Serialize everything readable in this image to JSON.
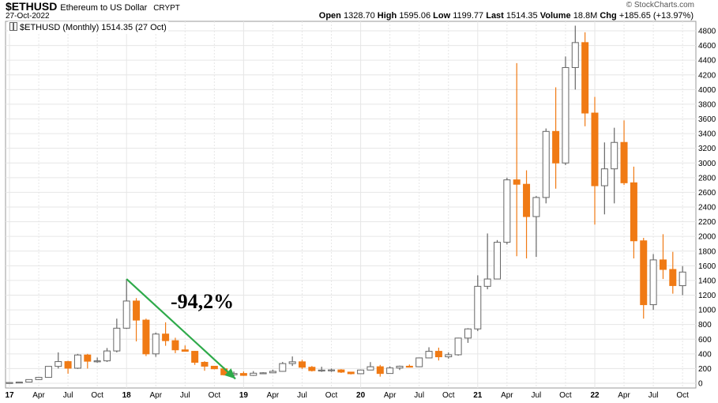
{
  "header": {
    "symbol": "$ETHUSD",
    "description": "Ethereum to US Dollar",
    "exchange": "CRYPT",
    "date": "27-Oct-2022",
    "copyright": "© StockCharts.com"
  },
  "quote": {
    "open_label": "Open",
    "open": "1328.70",
    "high_label": "High",
    "high": "1595.06",
    "low_label": "Low",
    "low": "1199.77",
    "last_label": "Last",
    "last": "1514.35",
    "volume_label": "Volume",
    "volume": "18.8M",
    "chg_label": "Chg",
    "chg": "+185.65 (+13.97%)"
  },
  "legend": {
    "label": "$ETHUSD (Monthly) 1514.35 (27 Oct)"
  },
  "annotation": {
    "text": "-94,2%",
    "arrow_color": "#2eaa4a"
  },
  "colors": {
    "up": "#ffffff",
    "down": "#f07a14",
    "up_border": "#666666",
    "wick": "#666666",
    "grid": "#e6e6e6"
  },
  "chart_data": {
    "type": "candlestick",
    "interval": "monthly",
    "y_axis_side": "right",
    "ylim": [
      0,
      4900
    ],
    "y_ticks": [
      0,
      200,
      400,
      600,
      800,
      1000,
      1200,
      1400,
      1600,
      1800,
      2000,
      2200,
      2400,
      2600,
      2800,
      3000,
      3200,
      3400,
      3600,
      3800,
      4000,
      4200,
      4400,
      4600,
      4800
    ],
    "x_ticks": [
      {
        "label": "17",
        "year": true,
        "month": "2017-01"
      },
      {
        "label": "Apr",
        "month": "2017-04"
      },
      {
        "label": "Jul",
        "month": "2017-07"
      },
      {
        "label": "Oct",
        "month": "2017-10"
      },
      {
        "label": "18",
        "year": true,
        "month": "2018-01"
      },
      {
        "label": "Apr",
        "month": "2018-04"
      },
      {
        "label": "Jul",
        "month": "2018-07"
      },
      {
        "label": "Oct",
        "month": "2018-10"
      },
      {
        "label": "19",
        "year": true,
        "month": "2019-01"
      },
      {
        "label": "Apr",
        "month": "2019-04"
      },
      {
        "label": "Jul",
        "month": "2019-07"
      },
      {
        "label": "Oct",
        "month": "2019-10"
      },
      {
        "label": "20",
        "year": true,
        "month": "2020-01"
      },
      {
        "label": "Apr",
        "month": "2020-04"
      },
      {
        "label": "Jul",
        "month": "2020-07"
      },
      {
        "label": "Oct",
        "month": "2020-10"
      },
      {
        "label": "21",
        "year": true,
        "month": "2021-01"
      },
      {
        "label": "Apr",
        "month": "2021-04"
      },
      {
        "label": "Jul",
        "month": "2021-07"
      },
      {
        "label": "Oct",
        "month": "2021-10"
      },
      {
        "label": "22",
        "year": true,
        "month": "2022-01"
      },
      {
        "label": "Apr",
        "month": "2022-04"
      },
      {
        "label": "Jul",
        "month": "2022-07"
      },
      {
        "label": "Oct",
        "month": "2022-10"
      }
    ],
    "candles": [
      {
        "t": "2017-01",
        "o": 8,
        "h": 11,
        "l": 8,
        "c": 10
      },
      {
        "t": "2017-02",
        "o": 10,
        "h": 16,
        "l": 10,
        "c": 16
      },
      {
        "t": "2017-03",
        "o": 16,
        "h": 53,
        "l": 16,
        "c": 50
      },
      {
        "t": "2017-04",
        "o": 50,
        "h": 80,
        "l": 43,
        "c": 80
      },
      {
        "t": "2017-05",
        "o": 80,
        "h": 230,
        "l": 78,
        "c": 230
      },
      {
        "t": "2017-06",
        "o": 230,
        "h": 420,
        "l": 200,
        "c": 295
      },
      {
        "t": "2017-07",
        "o": 295,
        "h": 305,
        "l": 130,
        "c": 205
      },
      {
        "t": "2017-08",
        "o": 205,
        "h": 400,
        "l": 195,
        "c": 385
      },
      {
        "t": "2017-09",
        "o": 385,
        "h": 400,
        "l": 200,
        "c": 300
      },
      {
        "t": "2017-10",
        "o": 300,
        "h": 350,
        "l": 280,
        "c": 305
      },
      {
        "t": "2017-11",
        "o": 305,
        "h": 480,
        "l": 290,
        "c": 440
      },
      {
        "t": "2017-12",
        "o": 440,
        "h": 880,
        "l": 420,
        "c": 750
      },
      {
        "t": "2018-01",
        "o": 750,
        "h": 1420,
        "l": 740,
        "c": 1120
      },
      {
        "t": "2018-02",
        "o": 1120,
        "h": 1160,
        "l": 570,
        "c": 860
      },
      {
        "t": "2018-03",
        "o": 860,
        "h": 880,
        "l": 370,
        "c": 400
      },
      {
        "t": "2018-04",
        "o": 400,
        "h": 690,
        "l": 360,
        "c": 670
      },
      {
        "t": "2018-05",
        "o": 670,
        "h": 830,
        "l": 510,
        "c": 580
      },
      {
        "t": "2018-06",
        "o": 580,
        "h": 620,
        "l": 410,
        "c": 455
      },
      {
        "t": "2018-07",
        "o": 455,
        "h": 515,
        "l": 430,
        "c": 435
      },
      {
        "t": "2018-08",
        "o": 435,
        "h": 440,
        "l": 250,
        "c": 285
      },
      {
        "t": "2018-09",
        "o": 285,
        "h": 300,
        "l": 170,
        "c": 232
      },
      {
        "t": "2018-10",
        "o": 232,
        "h": 235,
        "l": 190,
        "c": 197
      },
      {
        "t": "2018-11",
        "o": 197,
        "h": 220,
        "l": 105,
        "c": 115
      },
      {
        "t": "2018-12",
        "o": 115,
        "h": 160,
        "l": 82,
        "c": 133
      },
      {
        "t": "2019-01",
        "o": 133,
        "h": 160,
        "l": 100,
        "c": 107
      },
      {
        "t": "2019-02",
        "o": 107,
        "h": 165,
        "l": 100,
        "c": 137
      },
      {
        "t": "2019-03",
        "o": 137,
        "h": 150,
        "l": 130,
        "c": 142
      },
      {
        "t": "2019-04",
        "o": 142,
        "h": 185,
        "l": 140,
        "c": 162
      },
      {
        "t": "2019-05",
        "o": 162,
        "h": 290,
        "l": 158,
        "c": 268
      },
      {
        "t": "2019-06",
        "o": 268,
        "h": 365,
        "l": 235,
        "c": 292
      },
      {
        "t": "2019-07",
        "o": 292,
        "h": 320,
        "l": 195,
        "c": 218
      },
      {
        "t": "2019-08",
        "o": 218,
        "h": 235,
        "l": 160,
        "c": 172
      },
      {
        "t": "2019-09",
        "o": 172,
        "h": 225,
        "l": 155,
        "c": 180
      },
      {
        "t": "2019-10",
        "o": 180,
        "h": 200,
        "l": 155,
        "c": 182
      },
      {
        "t": "2019-11",
        "o": 182,
        "h": 192,
        "l": 140,
        "c": 152
      },
      {
        "t": "2019-12",
        "o": 152,
        "h": 155,
        "l": 120,
        "c": 130
      },
      {
        "t": "2020-01",
        "o": 130,
        "h": 185,
        "l": 127,
        "c": 180
      },
      {
        "t": "2020-02",
        "o": 180,
        "h": 288,
        "l": 178,
        "c": 225
      },
      {
        "t": "2020-03",
        "o": 225,
        "h": 250,
        "l": 90,
        "c": 133
      },
      {
        "t": "2020-04",
        "o": 133,
        "h": 230,
        "l": 130,
        "c": 208
      },
      {
        "t": "2020-05",
        "o": 208,
        "h": 240,
        "l": 180,
        "c": 232
      },
      {
        "t": "2020-06",
        "o": 232,
        "h": 255,
        "l": 215,
        "c": 225
      },
      {
        "t": "2020-07",
        "o": 225,
        "h": 350,
        "l": 220,
        "c": 345
      },
      {
        "t": "2020-08",
        "o": 345,
        "h": 490,
        "l": 340,
        "c": 435
      },
      {
        "t": "2020-09",
        "o": 435,
        "h": 485,
        "l": 310,
        "c": 360
      },
      {
        "t": "2020-10",
        "o": 360,
        "h": 420,
        "l": 335,
        "c": 388
      },
      {
        "t": "2020-11",
        "o": 388,
        "h": 620,
        "l": 375,
        "c": 615
      },
      {
        "t": "2020-12",
        "o": 615,
        "h": 750,
        "l": 550,
        "c": 740
      },
      {
        "t": "2021-01",
        "o": 740,
        "h": 1470,
        "l": 710,
        "c": 1320
      },
      {
        "t": "2021-02",
        "o": 1320,
        "h": 2040,
        "l": 1280,
        "c": 1420
      },
      {
        "t": "2021-03",
        "o": 1420,
        "h": 1950,
        "l": 1420,
        "c": 1920
      },
      {
        "t": "2021-04",
        "o": 1920,
        "h": 2800,
        "l": 1890,
        "c": 2770
      },
      {
        "t": "2021-05",
        "o": 2770,
        "h": 4360,
        "l": 1730,
        "c": 2710
      },
      {
        "t": "2021-06",
        "o": 2710,
        "h": 2900,
        "l": 1700,
        "c": 2270
      },
      {
        "t": "2021-07",
        "o": 2270,
        "h": 2550,
        "l": 1720,
        "c": 2530
      },
      {
        "t": "2021-08",
        "o": 2530,
        "h": 3470,
        "l": 2450,
        "c": 3430
      },
      {
        "t": "2021-09",
        "o": 3430,
        "h": 4030,
        "l": 2650,
        "c": 3000
      },
      {
        "t": "2021-10",
        "o": 3000,
        "h": 4450,
        "l": 2970,
        "c": 4300
      },
      {
        "t": "2021-11",
        "o": 4300,
        "h": 4870,
        "l": 4000,
        "c": 4640
      },
      {
        "t": "2021-12",
        "o": 4640,
        "h": 4780,
        "l": 3500,
        "c": 3680
      },
      {
        "t": "2022-01",
        "o": 3680,
        "h": 3900,
        "l": 2160,
        "c": 2690
      },
      {
        "t": "2022-02",
        "o": 2690,
        "h": 3280,
        "l": 2300,
        "c": 2920
      },
      {
        "t": "2022-03",
        "o": 2920,
        "h": 3480,
        "l": 2450,
        "c": 3280
      },
      {
        "t": "2022-04",
        "o": 3280,
        "h": 3580,
        "l": 2700,
        "c": 2730
      },
      {
        "t": "2022-05",
        "o": 2730,
        "h": 2950,
        "l": 1700,
        "c": 1940
      },
      {
        "t": "2022-06",
        "o": 1940,
        "h": 1980,
        "l": 880,
        "c": 1070
      },
      {
        "t": "2022-07",
        "o": 1070,
        "h": 1760,
        "l": 1000,
        "c": 1680
      },
      {
        "t": "2022-08",
        "o": 1680,
        "h": 2030,
        "l": 1420,
        "c": 1550
      },
      {
        "t": "2022-09",
        "o": 1550,
        "h": 1790,
        "l": 1220,
        "c": 1330
      },
      {
        "t": "2022-10",
        "o": 1328.7,
        "h": 1595.06,
        "l": 1199.77,
        "c": 1514.35
      }
    ],
    "annotation_arrow": {
      "from": {
        "t": "2018-01",
        "y": 1420
      },
      "to": {
        "t": "2018-12",
        "y": 82
      }
    }
  }
}
